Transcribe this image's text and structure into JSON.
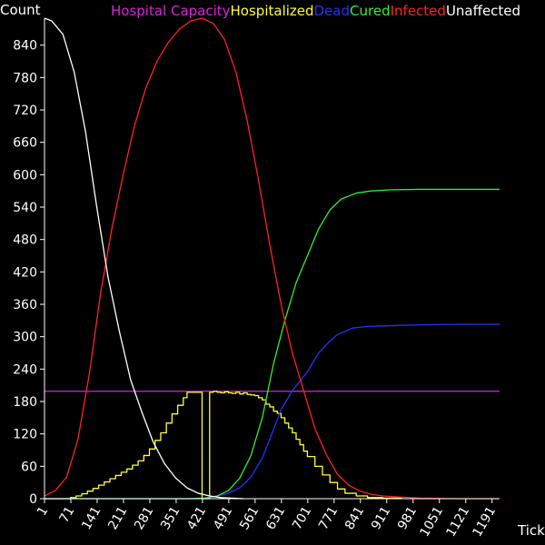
{
  "chart_data": {
    "type": "line",
    "title": "",
    "background": "#000000",
    "axis_color": "#ffffff",
    "ylabel": "Count",
    "xlabel": "Tick",
    "xlim": [
      1,
      1211
    ],
    "ylim": [
      0,
      890
    ],
    "x_ticks": [
      1,
      71,
      141,
      211,
      281,
      351,
      421,
      491,
      561,
      631,
      701,
      771,
      841,
      911,
      981,
      1051,
      1121,
      1191
    ],
    "y_ticks": [
      0,
      60,
      120,
      180,
      240,
      300,
      360,
      420,
      480,
      540,
      600,
      660,
      720,
      780,
      840
    ],
    "legend": [
      "Hospital Capacity",
      "Hospitalized",
      "Dead",
      "Cured",
      "Infected",
      "Unaffected"
    ],
    "legend_position": "top",
    "series": [
      {
        "name": "Hospital Capacity",
        "color": "#dd22dd",
        "step": false,
        "x": [
          1,
          1211
        ],
        "y": [
          199,
          199
        ]
      },
      {
        "name": "Hospitalized",
        "color": "#ffff33",
        "step": true,
        "x": [
          1,
          50,
          70,
          85,
          100,
          115,
          130,
          145,
          160,
          175,
          190,
          205,
          220,
          235,
          250,
          265,
          280,
          295,
          310,
          325,
          340,
          355,
          370,
          380,
          382,
          420,
          440,
          450,
          460,
          470,
          480,
          490,
          500,
          510,
          520,
          530,
          540,
          550,
          560,
          570,
          580,
          590,
          600,
          610,
          620,
          630,
          640,
          650,
          660,
          670,
          680,
          690,
          700,
          720,
          740,
          760,
          780,
          800,
          830,
          860,
          900,
          950
        ],
        "y": [
          0,
          0,
          2,
          5,
          9,
          14,
          19,
          25,
          31,
          37,
          43,
          49,
          55,
          62,
          70,
          80,
          92,
          108,
          122,
          140,
          157,
          173,
          187,
          197,
          197,
          0,
          197,
          199,
          197,
          196,
          198,
          196,
          195,
          197,
          194,
          196,
          193,
          192,
          191,
          187,
          183,
          175,
          170,
          162,
          158,
          150,
          140,
          131,
          122,
          110,
          100,
          88,
          78,
          60,
          44,
          30,
          18,
          10,
          5,
          2,
          1,
          0
        ]
      },
      {
        "name": "Dead",
        "color": "#2233ff",
        "step": false,
        "x": [
          1,
          400,
          430,
          460,
          490,
          520,
          550,
          580,
          610,
          630,
          660,
          700,
          730,
          760,
          780,
          800,
          820,
          860,
          900,
          950,
          1000,
          1100,
          1211
        ],
        "y": [
          0,
          0,
          2,
          5,
          10,
          20,
          40,
          75,
          128,
          165,
          200,
          235,
          270,
          292,
          304,
          310,
          316,
          319,
          320,
          321,
          322,
          323,
          323
        ]
      },
      {
        "name": "Cured",
        "color": "#33ee33",
        "step": false,
        "x": [
          1,
          380,
          430,
          460,
          490,
          520,
          550,
          580,
          610,
          640,
          670,
          700,
          730,
          760,
          790,
          830,
          870,
          920,
          1000,
          1100,
          1211
        ],
        "y": [
          0,
          0,
          1,
          5,
          15,
          38,
          80,
          150,
          250,
          330,
          400,
          450,
          500,
          535,
          555,
          566,
          570,
          572,
          573,
          573,
          573
        ]
      },
      {
        "name": "Infected",
        "color": "#ff2222",
        "step": false,
        "x": [
          1,
          30,
          60,
          90,
          120,
          150,
          180,
          210,
          240,
          270,
          300,
          330,
          360,
          390,
          420,
          450,
          480,
          510,
          540,
          570,
          600,
          630,
          660,
          690,
          720,
          750,
          780,
          810,
          840,
          870,
          900,
          950,
          1000,
          1100,
          1211
        ],
        "y": [
          5,
          15,
          40,
          110,
          230,
          380,
          500,
          600,
          690,
          760,
          810,
          845,
          870,
          885,
          890,
          880,
          850,
          790,
          700,
          590,
          470,
          360,
          270,
          200,
          130,
          82,
          45,
          25,
          14,
          8,
          5,
          3,
          1,
          0,
          0
        ]
      },
      {
        "name": "Unaffected",
        "color": "#ffffff",
        "step": false,
        "x": [
          1,
          20,
          50,
          80,
          110,
          140,
          170,
          200,
          230,
          260,
          290,
          320,
          350,
          380,
          410,
          440,
          470,
          500,
          530
        ],
        "y": [
          890,
          885,
          860,
          790,
          680,
          540,
          410,
          310,
          220,
          160,
          105,
          65,
          38,
          20,
          10,
          5,
          2,
          1,
          0
        ]
      }
    ]
  }
}
